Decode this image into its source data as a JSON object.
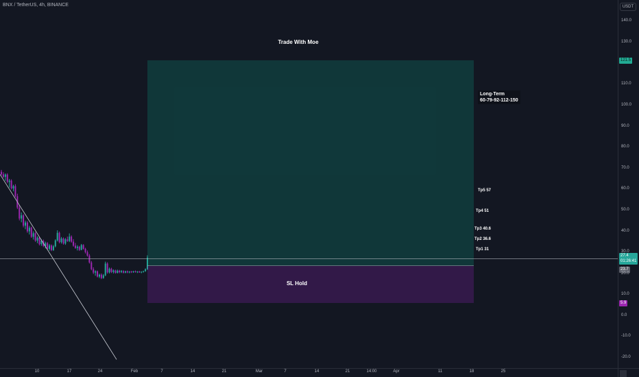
{
  "header": {
    "symbol_info": "BNX / TetherUS, 4h, BINANCE",
    "currency_label": "USDT"
  },
  "price_axis": {
    "labels": [
      "140.0",
      "130.0",
      "120.0",
      "110.0",
      "100.0",
      "90.0",
      "80.0",
      "70.0",
      "60.0",
      "50.0",
      "40.0",
      "30.0",
      "20.0",
      "10.0",
      "0.0",
      "-10.0",
      "-20.0"
    ]
  },
  "time_axis": {
    "labels": [
      "10",
      "17",
      "24",
      "Feb",
      "7",
      "14",
      "21",
      "Mar",
      "7",
      "14",
      "21",
      "14:00",
      "Apr",
      "11",
      "18",
      "25"
    ]
  },
  "price_tags": {
    "target": "121.5",
    "current": "27.4",
    "current_timer": "01:26:41",
    "entry": "23.7",
    "stop": "5.9"
  },
  "drawings": {
    "top_label": "Trade With Moe",
    "stop_label": "SL Hold",
    "longterm_title": "Long-Term",
    "longterm_levels": "60-79-92-112-150",
    "tp5": "Tp5 57",
    "tp4": "Tp4 51",
    "tp3": "Tp3 40.6",
    "tp2": "Tp2 36.6",
    "tp1": "Tp1 31"
  },
  "colors": {
    "background": "#131722",
    "target_zone": "#089981",
    "stop_zone": "#7b1fa2",
    "target_tag": "#22ab94",
    "current_tag": "#26a69a",
    "entry_tag": "#5d606b",
    "stop_tag": "#9c27b0",
    "candle_up": "#26a69a",
    "candle_down": "#9c27b0"
  },
  "candles": [
    {
      "o": 68.2,
      "h": 69.1,
      "l": 66.5,
      "c": 67.0
    },
    {
      "o": 67.0,
      "h": 68.0,
      "l": 65.2,
      "c": 65.8
    },
    {
      "o": 65.8,
      "h": 67.4,
      "l": 63.9,
      "c": 66.9
    },
    {
      "o": 66.9,
      "h": 67.5,
      "l": 62.8,
      "c": 63.4
    },
    {
      "o": 63.4,
      "h": 64.8,
      "l": 60.7,
      "c": 64.0
    },
    {
      "o": 64.0,
      "h": 64.6,
      "l": 59.8,
      "c": 60.3
    },
    {
      "o": 60.3,
      "h": 62.0,
      "l": 58.9,
      "c": 61.4
    },
    {
      "o": 61.4,
      "h": 62.3,
      "l": 56.0,
      "c": 56.6
    },
    {
      "o": 56.6,
      "h": 57.8,
      "l": 50.5,
      "c": 51.2
    },
    {
      "o": 51.2,
      "h": 52.4,
      "l": 45.1,
      "c": 46.0
    },
    {
      "o": 46.0,
      "h": 48.9,
      "l": 44.2,
      "c": 47.5
    },
    {
      "o": 47.5,
      "h": 48.1,
      "l": 41.8,
      "c": 42.6
    },
    {
      "o": 42.6,
      "h": 45.0,
      "l": 40.9,
      "c": 44.1
    },
    {
      "o": 44.1,
      "h": 44.8,
      "l": 39.2,
      "c": 39.9
    },
    {
      "o": 39.9,
      "h": 42.5,
      "l": 38.4,
      "c": 41.6
    },
    {
      "o": 41.6,
      "h": 42.1,
      "l": 36.8,
      "c": 37.3
    },
    {
      "o": 37.3,
      "h": 39.9,
      "l": 36.0,
      "c": 39.0
    },
    {
      "o": 39.0,
      "h": 39.6,
      "l": 34.9,
      "c": 35.5
    },
    {
      "o": 35.5,
      "h": 37.6,
      "l": 34.3,
      "c": 36.9
    },
    {
      "o": 36.9,
      "h": 37.3,
      "l": 33.2,
      "c": 33.8
    },
    {
      "o": 33.8,
      "h": 36.2,
      "l": 33.0,
      "c": 35.4
    },
    {
      "o": 35.4,
      "h": 36.0,
      "l": 32.4,
      "c": 32.9
    },
    {
      "o": 32.9,
      "h": 35.0,
      "l": 31.8,
      "c": 34.3
    },
    {
      "o": 34.3,
      "h": 34.8,
      "l": 31.1,
      "c": 31.6
    },
    {
      "o": 31.6,
      "h": 33.9,
      "l": 30.7,
      "c": 33.2
    },
    {
      "o": 33.2,
      "h": 33.7,
      "l": 30.5,
      "c": 31.0
    },
    {
      "o": 31.0,
      "h": 33.4,
      "l": 30.6,
      "c": 32.8
    },
    {
      "o": 32.8,
      "h": 36.1,
      "l": 32.3,
      "c": 35.6
    },
    {
      "o": 35.6,
      "h": 40.4,
      "l": 35.1,
      "c": 39.2
    },
    {
      "o": 39.2,
      "h": 39.8,
      "l": 34.2,
      "c": 34.8
    },
    {
      "o": 34.8,
      "h": 37.2,
      "l": 34.1,
      "c": 36.5
    },
    {
      "o": 36.5,
      "h": 37.0,
      "l": 33.6,
      "c": 34.1
    },
    {
      "o": 34.1,
      "h": 36.7,
      "l": 33.5,
      "c": 36.1
    },
    {
      "o": 36.1,
      "h": 37.4,
      "l": 34.9,
      "c": 35.3
    },
    {
      "o": 35.3,
      "h": 38.9,
      "l": 34.8,
      "c": 37.4
    },
    {
      "o": 37.4,
      "h": 38.0,
      "l": 34.5,
      "c": 35.0
    },
    {
      "o": 35.0,
      "h": 36.2,
      "l": 32.6,
      "c": 33.1
    },
    {
      "o": 33.1,
      "h": 34.4,
      "l": 31.6,
      "c": 32.0
    },
    {
      "o": 32.0,
      "h": 33.3,
      "l": 30.8,
      "c": 32.6
    },
    {
      "o": 32.6,
      "h": 33.0,
      "l": 30.6,
      "c": 31.1
    },
    {
      "o": 31.1,
      "h": 33.9,
      "l": 30.9,
      "c": 33.4
    },
    {
      "o": 33.4,
      "h": 33.8,
      "l": 31.2,
      "c": 31.6
    },
    {
      "o": 31.6,
      "h": 32.1,
      "l": 29.4,
      "c": 30.0
    },
    {
      "o": 30.0,
      "h": 30.8,
      "l": 27.9,
      "c": 28.4
    },
    {
      "o": 28.4,
      "h": 29.1,
      "l": 24.6,
      "c": 25.1
    },
    {
      "o": 25.1,
      "h": 25.8,
      "l": 21.4,
      "c": 21.9
    },
    {
      "o": 21.9,
      "h": 22.8,
      "l": 19.6,
      "c": 20.3
    },
    {
      "o": 20.3,
      "h": 21.4,
      "l": 18.8,
      "c": 20.9
    },
    {
      "o": 20.9,
      "h": 21.3,
      "l": 18.0,
      "c": 18.4
    },
    {
      "o": 18.4,
      "h": 19.8,
      "l": 17.7,
      "c": 19.3
    },
    {
      "o": 19.3,
      "h": 19.9,
      "l": 17.2,
      "c": 17.7
    },
    {
      "o": 17.7,
      "h": 19.6,
      "l": 17.4,
      "c": 19.0
    },
    {
      "o": 19.0,
      "h": 25.5,
      "l": 18.6,
      "c": 24.6
    },
    {
      "o": 24.6,
      "h": 25.2,
      "l": 19.8,
      "c": 20.4
    },
    {
      "o": 20.4,
      "h": 22.7,
      "l": 19.9,
      "c": 22.1
    },
    {
      "o": 22.1,
      "h": 22.6,
      "l": 20.1,
      "c": 20.6
    },
    {
      "o": 20.6,
      "h": 21.8,
      "l": 19.9,
      "c": 21.3
    },
    {
      "o": 21.3,
      "h": 21.7,
      "l": 19.8,
      "c": 20.2
    },
    {
      "o": 20.2,
      "h": 21.7,
      "l": 19.9,
      "c": 21.2
    },
    {
      "o": 21.2,
      "h": 21.6,
      "l": 20.0,
      "c": 20.5
    },
    {
      "o": 20.5,
      "h": 21.5,
      "l": 20.1,
      "c": 21.0
    },
    {
      "o": 21.0,
      "h": 21.4,
      "l": 19.9,
      "c": 20.3
    },
    {
      "o": 20.3,
      "h": 21.2,
      "l": 20.0,
      "c": 20.9
    },
    {
      "o": 20.9,
      "h": 21.3,
      "l": 20.0,
      "c": 20.4
    },
    {
      "o": 20.4,
      "h": 21.0,
      "l": 20.0,
      "c": 20.8
    },
    {
      "o": 20.8,
      "h": 21.1,
      "l": 20.1,
      "c": 20.5
    },
    {
      "o": 20.5,
      "h": 21.1,
      "l": 20.2,
      "c": 20.9
    },
    {
      "o": 20.9,
      "h": 21.3,
      "l": 20.3,
      "c": 20.6
    },
    {
      "o": 20.6,
      "h": 21.0,
      "l": 20.1,
      "c": 20.8
    },
    {
      "o": 20.8,
      "h": 21.1,
      "l": 20.2,
      "c": 20.4
    },
    {
      "o": 20.4,
      "h": 20.9,
      "l": 20.0,
      "c": 20.7
    },
    {
      "o": 20.7,
      "h": 21.2,
      "l": 20.3,
      "c": 21.0
    },
    {
      "o": 21.0,
      "h": 22.3,
      "l": 20.7,
      "c": 21.9
    },
    {
      "o": 21.9,
      "h": 28.5,
      "l": 21.6,
      "c": 27.4
    }
  ],
  "trendline": {
    "start_price": 67.0,
    "end_price": -21.0
  }
}
